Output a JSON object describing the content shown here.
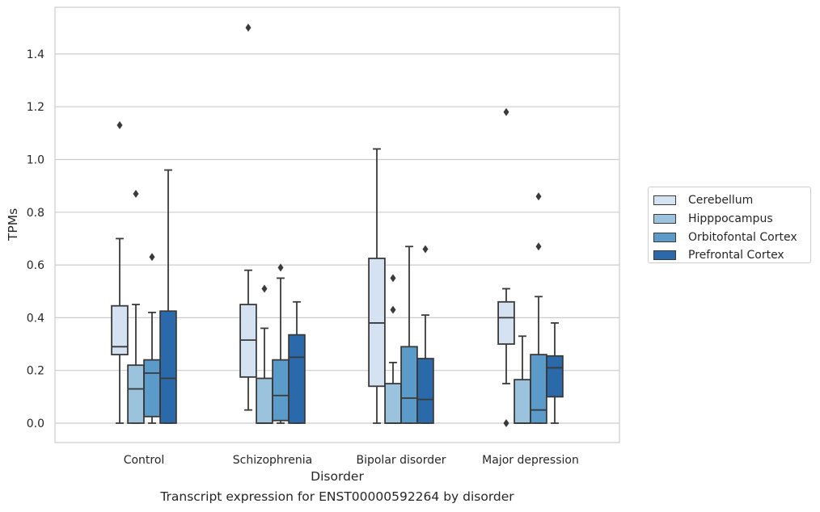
{
  "chart_data": {
    "type": "box",
    "title": "",
    "xlabel": "Disorder",
    "ylabel": "TPMs",
    "caption": "Transcript expression for ENST00000592264 by disorder",
    "categories": [
      "Control",
      "Schizophrenia",
      "Bipolar disorder",
      "Major depression"
    ],
    "ylim": [
      -0.07,
      1.57
    ],
    "yticks": [
      "0.0",
      "0.2",
      "0.4",
      "0.6",
      "0.8",
      "1.0",
      "1.2",
      "1.4"
    ],
    "grid": true,
    "legend_position": "right",
    "series": [
      {
        "name": "Cerebellum",
        "color": "#d4e2f2",
        "boxes": [
          {
            "whisker_low": 0.0,
            "q1": 0.26,
            "median": 0.29,
            "q3": 0.445,
            "whisker_high": 0.7,
            "outliers": [
              1.13
            ]
          },
          {
            "whisker_low": 0.05,
            "q1": 0.175,
            "median": 0.315,
            "q3": 0.45,
            "whisker_high": 0.58,
            "outliers": [
              1.5
            ]
          },
          {
            "whisker_low": 0.0,
            "q1": 0.14,
            "median": 0.38,
            "q3": 0.625,
            "whisker_high": 1.04,
            "outliers": []
          },
          {
            "whisker_low": 0.15,
            "q1": 0.3,
            "median": 0.4,
            "q3": 0.46,
            "whisker_high": 0.51,
            "outliers": [
              1.18,
              0.0
            ]
          }
        ]
      },
      {
        "name": "Hipppocampus",
        "color": "#9cc3de",
        "boxes": [
          {
            "whisker_low": 0.0,
            "q1": 0.0,
            "median": 0.13,
            "q3": 0.22,
            "whisker_high": 0.45,
            "outliers": [
              0.87
            ]
          },
          {
            "whisker_low": 0.0,
            "q1": 0.0,
            "median": 0.0,
            "q3": 0.17,
            "whisker_high": 0.36,
            "outliers": [
              0.51
            ]
          },
          {
            "whisker_low": 0.0,
            "q1": 0.0,
            "median": 0.0,
            "q3": 0.15,
            "whisker_high": 0.23,
            "outliers": [
              0.55,
              0.43
            ]
          },
          {
            "whisker_low": 0.0,
            "q1": 0.0,
            "median": 0.0,
            "q3": 0.165,
            "whisker_high": 0.33,
            "outliers": []
          }
        ]
      },
      {
        "name": "Orbitofontal Cortex",
        "color": "#5b9bc9",
        "boxes": [
          {
            "whisker_low": 0.0,
            "q1": 0.025,
            "median": 0.19,
            "q3": 0.24,
            "whisker_high": 0.42,
            "outliers": [
              0.63
            ]
          },
          {
            "whisker_low": 0.0,
            "q1": 0.01,
            "median": 0.105,
            "q3": 0.24,
            "whisker_high": 0.55,
            "outliers": [
              0.59
            ]
          },
          {
            "whisker_low": 0.0,
            "q1": 0.0,
            "median": 0.095,
            "q3": 0.29,
            "whisker_high": 0.67,
            "outliers": []
          },
          {
            "whisker_low": 0.0,
            "q1": 0.0,
            "median": 0.05,
            "q3": 0.26,
            "whisker_high": 0.48,
            "outliers": [
              0.86,
              0.67
            ]
          }
        ]
      },
      {
        "name": "Prefrontal Cortex",
        "color": "#2b6aaa",
        "boxes": [
          {
            "whisker_low": 0.0,
            "q1": 0.0,
            "median": 0.17,
            "q3": 0.425,
            "whisker_high": 0.96,
            "outliers": []
          },
          {
            "whisker_low": 0.0,
            "q1": 0.0,
            "median": 0.25,
            "q3": 0.335,
            "whisker_high": 0.46,
            "outliers": []
          },
          {
            "whisker_low": 0.0,
            "q1": 0.0,
            "median": 0.09,
            "q3": 0.245,
            "whisker_high": 0.41,
            "outliers": [
              0.66
            ]
          },
          {
            "whisker_low": 0.0,
            "q1": 0.1,
            "median": 0.21,
            "q3": 0.255,
            "whisker_high": 0.38,
            "outliers": []
          }
        ]
      }
    ]
  }
}
